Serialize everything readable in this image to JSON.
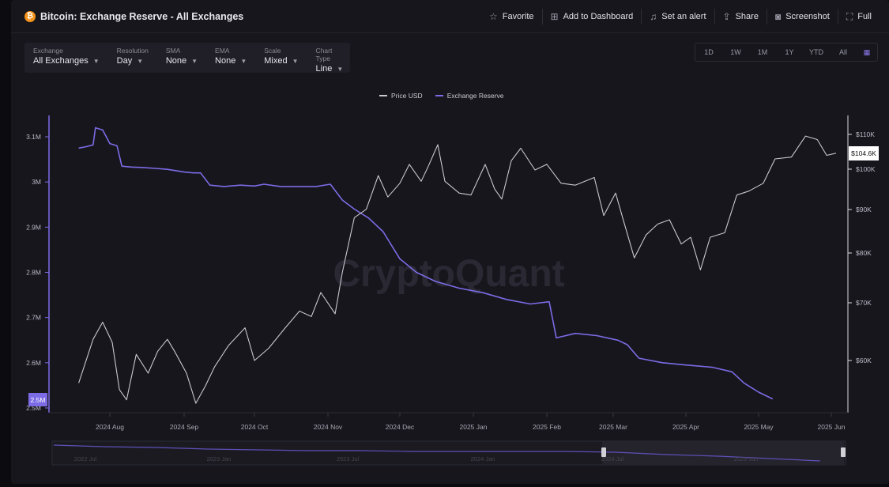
{
  "header": {
    "coin_glyph": "₿",
    "title": "Bitcoin: Exchange Reserve - All Exchanges",
    "actions": [
      {
        "label": "Favorite",
        "icon": "star-icon"
      },
      {
        "label": "Add to Dashboard",
        "icon": "dashboard-add-icon"
      },
      {
        "label": "Set an alert",
        "icon": "bell-icon"
      },
      {
        "label": "Share",
        "icon": "share-icon"
      },
      {
        "label": "Screenshot",
        "icon": "camera-icon"
      },
      {
        "label": "Full",
        "icon": "fullscreen-icon"
      }
    ]
  },
  "controls": [
    {
      "label": "Exchange",
      "value": "All Exchanges"
    },
    {
      "label": "Resolution",
      "value": "Day"
    },
    {
      "label": "SMA",
      "value": "None"
    },
    {
      "label": "EMA",
      "value": "None"
    },
    {
      "label": "Scale",
      "value": "Mixed"
    },
    {
      "label": "Chart Type",
      "value": "Line"
    }
  ],
  "ranges": [
    "1D",
    "1W",
    "1M",
    "1Y",
    "YTD",
    "All"
  ],
  "watermark": "CryptoQuant",
  "colors": {
    "price": "#c8c8ce",
    "reserve": "#7b6ce6",
    "accent": "#8d7cf0"
  },
  "chart_data": {
    "type": "line",
    "legend": [
      "Price USD",
      "Exchange Reserve"
    ],
    "legend_position": "top-center",
    "x_ticks": [
      "2024 Aug",
      "2024 Sep",
      "2024 Oct",
      "2024 Nov",
      "2024 Dec",
      "2025 Jan",
      "2025 Feb",
      "2025 Mar",
      "2025 Apr",
      "2025 May",
      "2025 Jun"
    ],
    "y_left_ticks": [
      "3.1M",
      "3M",
      "2.9M",
      "2.8M",
      "2.7M",
      "2.6M",
      "2.5M"
    ],
    "y_left_range": [
      2.5,
      3.12
    ],
    "y_left_unit": "M",
    "y_right_ticks": [
      "$110K",
      "$100K",
      "$90K",
      "$80K",
      "$70K",
      "$60K"
    ],
    "y_right_scale": "log",
    "left_marker": "2.5M",
    "right_marker": "$104.6K",
    "series": [
      {
        "name": "Exchange Reserve",
        "axis": "left",
        "points": [
          [
            "2024-07-19",
            3.075
          ],
          [
            "2024-07-22",
            3.078
          ],
          [
            "2024-07-25",
            3.082
          ],
          [
            "2024-07-26",
            3.12
          ],
          [
            "2024-07-29",
            3.115
          ],
          [
            "2024-08-01",
            3.085
          ],
          [
            "2024-08-04",
            3.08
          ],
          [
            "2024-08-06",
            3.035
          ],
          [
            "2024-08-10",
            3.033
          ],
          [
            "2024-08-15",
            3.032
          ],
          [
            "2024-08-20",
            3.03
          ],
          [
            "2024-08-25",
            3.028
          ],
          [
            "2024-09-01",
            3.022
          ],
          [
            "2024-09-05",
            3.02
          ],
          [
            "2024-09-08",
            3.02
          ],
          [
            "2024-09-12",
            2.993
          ],
          [
            "2024-09-18",
            2.99
          ],
          [
            "2024-09-25",
            2.993
          ],
          [
            "2024-10-01",
            2.991
          ],
          [
            "2024-10-05",
            2.995
          ],
          [
            "2024-10-12",
            2.99
          ],
          [
            "2024-10-20",
            2.99
          ],
          [
            "2024-10-27",
            2.99
          ],
          [
            "2024-11-02",
            2.995
          ],
          [
            "2024-11-07",
            2.96
          ],
          [
            "2024-11-12",
            2.94
          ],
          [
            "2024-11-18",
            2.92
          ],
          [
            "2024-11-24",
            2.89
          ],
          [
            "2024-12-01",
            2.83
          ],
          [
            "2024-12-08",
            2.8
          ],
          [
            "2024-12-16",
            2.78
          ],
          [
            "2024-12-26",
            2.765
          ],
          [
            "2025-01-05",
            2.755
          ],
          [
            "2025-01-15",
            2.74
          ],
          [
            "2025-01-25",
            2.73
          ],
          [
            "2025-02-02",
            2.735
          ],
          [
            "2025-02-05",
            2.655
          ],
          [
            "2025-02-13",
            2.665
          ],
          [
            "2025-02-22",
            2.66
          ],
          [
            "2025-03-03",
            2.65
          ],
          [
            "2025-03-07",
            2.64
          ],
          [
            "2025-03-12",
            2.61
          ],
          [
            "2025-03-22",
            2.6
          ],
          [
            "2025-04-01",
            2.595
          ],
          [
            "2025-04-12",
            2.59
          ],
          [
            "2025-04-20",
            2.58
          ],
          [
            "2025-04-25",
            2.555
          ],
          [
            "2025-05-01",
            2.535
          ],
          [
            "2025-05-07",
            2.52
          ]
        ]
      },
      {
        "name": "Price USD",
        "axis": "right",
        "points": [
          [
            "2024-07-19",
            56500
          ],
          [
            "2024-07-25",
            63500
          ],
          [
            "2024-07-29",
            66500
          ],
          [
            "2024-08-02",
            63000
          ],
          [
            "2024-08-05",
            55500
          ],
          [
            "2024-08-08",
            54000
          ],
          [
            "2024-08-12",
            61000
          ],
          [
            "2024-08-17",
            58000
          ],
          [
            "2024-08-21",
            61500
          ],
          [
            "2024-08-25",
            63500
          ],
          [
            "2024-08-28",
            61500
          ],
          [
            "2024-09-02",
            58000
          ],
          [
            "2024-09-06",
            53500
          ],
          [
            "2024-09-10",
            56000
          ],
          [
            "2024-09-14",
            59000
          ],
          [
            "2024-09-20",
            62500
          ],
          [
            "2024-09-27",
            65500
          ],
          [
            "2024-10-01",
            60000
          ],
          [
            "2024-10-07",
            62000
          ],
          [
            "2024-10-14",
            65500
          ],
          [
            "2024-10-20",
            68500
          ],
          [
            "2024-10-25",
            67500
          ],
          [
            "2024-10-29",
            72000
          ],
          [
            "2024-11-04",
            68000
          ],
          [
            "2024-11-07",
            76000
          ],
          [
            "2024-11-12",
            88000
          ],
          [
            "2024-11-17",
            90000
          ],
          [
            "2024-11-22",
            98500
          ],
          [
            "2024-11-26",
            93000
          ],
          [
            "2024-12-01",
            96500
          ],
          [
            "2024-12-05",
            101500
          ],
          [
            "2024-12-10",
            97000
          ],
          [
            "2024-12-13",
            101000
          ],
          [
            "2024-12-17",
            107000
          ],
          [
            "2024-12-20",
            97000
          ],
          [
            "2024-12-26",
            94000
          ],
          [
            "2024-12-31",
            93500
          ],
          [
            "2025-01-06",
            101500
          ],
          [
            "2025-01-10",
            95000
          ],
          [
            "2025-01-13",
            92500
          ],
          [
            "2025-01-17",
            102500
          ],
          [
            "2025-01-21",
            106000
          ],
          [
            "2025-01-27",
            100000
          ],
          [
            "2025-02-01",
            101500
          ],
          [
            "2025-02-07",
            96500
          ],
          [
            "2025-02-13",
            96000
          ],
          [
            "2025-02-21",
            98000
          ],
          [
            "2025-02-25",
            88500
          ],
          [
            "2025-03-02",
            94000
          ],
          [
            "2025-03-05",
            88000
          ],
          [
            "2025-03-10",
            79000
          ],
          [
            "2025-03-15",
            84000
          ],
          [
            "2025-03-20",
            86500
          ],
          [
            "2025-03-25",
            87500
          ],
          [
            "2025-03-30",
            82000
          ],
          [
            "2025-04-03",
            83500
          ],
          [
            "2025-04-07",
            76500
          ],
          [
            "2025-04-11",
            83500
          ],
          [
            "2025-04-17",
            84500
          ],
          [
            "2025-04-22",
            93500
          ],
          [
            "2025-04-27",
            94500
          ],
          [
            "2025-05-03",
            96500
          ],
          [
            "2025-05-08",
            103000
          ],
          [
            "2025-05-15",
            103500
          ],
          [
            "2025-05-21",
            109500
          ],
          [
            "2025-05-26",
            108500
          ],
          [
            "2025-05-30",
            104000
          ],
          [
            "2025-06-03",
            104600
          ]
        ]
      }
    ]
  },
  "navigator": {
    "ticks": [
      "2022 Jul",
      "2023 Jan",
      "2023 Jul",
      "2024 Jan",
      "2024 Jul",
      "2025 Jan"
    ]
  }
}
